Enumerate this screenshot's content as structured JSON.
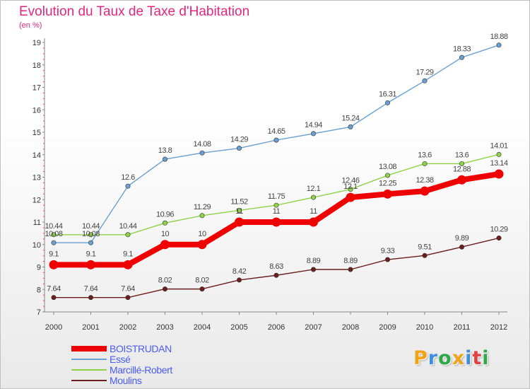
{
  "title": "Evolution du Taux de Taxe d'Habitation",
  "subtitle": "(en %)",
  "brand": {
    "letters": [
      "P",
      "r",
      "o",
      "x",
      "i",
      "t",
      "i"
    ],
    "colors": [
      "#f2a31a",
      "#3d8de0",
      "#2fa84a",
      "#f2a31a",
      "#3d8de0",
      "#e04040",
      "#2fa84a"
    ]
  },
  "chart_data": {
    "type": "line",
    "x": [
      "2000",
      "2001",
      "2002",
      "2003",
      "2004",
      "2005",
      "2006",
      "2007",
      "2008",
      "2009",
      "2010",
      "2011",
      "2012"
    ],
    "ylim": [
      7,
      19
    ],
    "yticks": [
      "7",
      "8",
      "9",
      "10",
      "11",
      "12",
      "13",
      "14",
      "15",
      "16",
      "17",
      "18",
      "19"
    ],
    "grid": false,
    "legend_position": "bottom-left",
    "series": [
      {
        "name": "Moulins",
        "color": "#6b1e1e",
        "values": [
          7.64,
          7.64,
          7.64,
          8.02,
          8.02,
          8.42,
          8.63,
          8.89,
          8.89,
          9.33,
          9.51,
          9.89,
          10.29
        ],
        "labels": [
          "7.64",
          "7.64",
          "7.64",
          "8.02",
          "8.02",
          "8.42",
          "8.63",
          "8.89",
          "8.89",
          "9.33",
          "9.51",
          "9.89",
          "10.29"
        ]
      },
      {
        "name": "Marcillé-Robert",
        "color": "#8fd24a",
        "values": [
          10.44,
          10.44,
          10.44,
          10.96,
          11.29,
          11.52,
          11.75,
          12.1,
          12.46,
          13.08,
          13.6,
          13.6,
          14.01
        ],
        "labels": [
          "10.44",
          "10.44",
          "10.44",
          "10.96",
          "11.29",
          "11.52",
          "11.75",
          "12.1",
          "12.46",
          "13.08",
          "13.6",
          "13.6",
          "14.01"
        ]
      },
      {
        "name": "Essé",
        "color": "#6a9fd0",
        "values": [
          10.08,
          10.08,
          12.6,
          13.8,
          14.08,
          14.29,
          14.65,
          14.94,
          15.24,
          16.31,
          17.29,
          18.33,
          18.88
        ],
        "labels": [
          "10.08",
          "10.08",
          "12.6",
          "13.8",
          "14.08",
          "14.29",
          "14.65",
          "14.94",
          "15.24",
          "16.31",
          "17.29",
          "18.33",
          "18.88"
        ]
      },
      {
        "name": "BOISTRUDAN",
        "color": "#ee0000",
        "values": [
          9.1,
          9.1,
          9.1,
          10,
          10,
          11,
          11,
          11,
          12.1,
          12.25,
          12.38,
          12.88,
          13.14
        ],
        "labels": [
          "9.1",
          "9.1",
          "9.1",
          "10",
          "10",
          "11",
          "11",
          "11",
          "12.1",
          "12.25",
          "12.38",
          "12.88",
          "13.14"
        ]
      }
    ],
    "legend": [
      "BOISTRUDAN",
      "Essé",
      "Marcillé-Robert",
      "Moulins"
    ]
  }
}
